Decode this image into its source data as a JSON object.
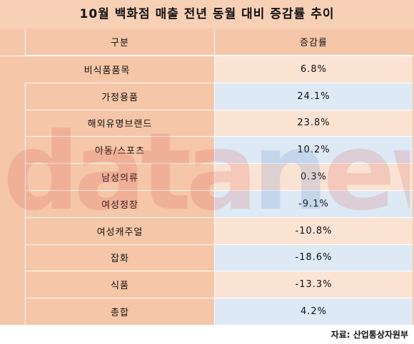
{
  "title": "10월 백화점 매출 전년 동월 대비 증감률 추이",
  "table": {
    "headers": [
      "구분",
      "증감률"
    ],
    "rows": [
      {
        "label": "비식품품목",
        "value": "6.8%"
      },
      {
        "label": "가정용품",
        "value": "24.1%"
      },
      {
        "label": "해외유명브랜드",
        "value": "23.8%"
      },
      {
        "label": "아동/스포츠",
        "value": "10.2%"
      },
      {
        "label": "남성의류",
        "value": "0.3%"
      },
      {
        "label": "여성정장",
        "value": "-9.1%"
      },
      {
        "label": "여성캐주얼",
        "value": "-10.8%"
      },
      {
        "label": "잡화",
        "value": "-18.6%"
      },
      {
        "label": "식품",
        "value": "-13.3%"
      },
      {
        "label": "총합",
        "value": "4.2%"
      }
    ]
  },
  "watermark": {
    "text": "datanews",
    "colors": [
      "#d9534f",
      "#5b7fc4"
    ]
  },
  "source": "자료: 산업통상자원부",
  "colors": {
    "title_band": "#f7d0b6",
    "label_column": "#f6c6a8",
    "value_peach": "#fbe3d4",
    "value_blue": "#dde9f5"
  }
}
